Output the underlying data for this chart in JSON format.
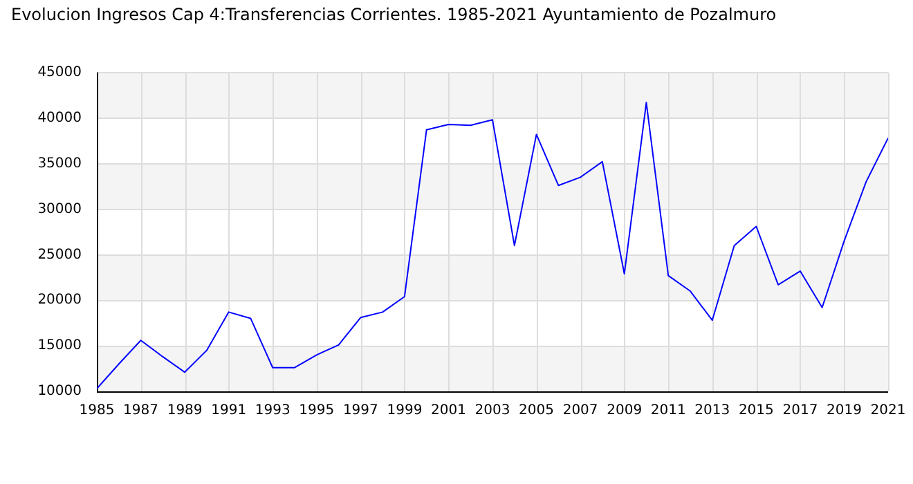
{
  "chart_data": {
    "type": "line",
    "title": "Evolucion Ingresos Cap 4:Transferencias Corrientes. 1985-2021 Ayuntamiento de Pozalmuro",
    "x": [
      1985,
      1986,
      1987,
      1988,
      1989,
      1990,
      1991,
      1992,
      1993,
      1994,
      1995,
      1996,
      1997,
      1998,
      1999,
      2000,
      2001,
      2002,
      2003,
      2004,
      2005,
      2006,
      2007,
      2008,
      2009,
      2010,
      2011,
      2012,
      2013,
      2014,
      2015,
      2016,
      2017,
      2018,
      2019,
      2020,
      2021
    ],
    "series": [
      {
        "color": "#0000ff",
        "values": [
          10300,
          13000,
          15600,
          13800,
          12100,
          14500,
          18700,
          18000,
          12600,
          12600,
          14000,
          15100,
          18100,
          18700,
          20400,
          38700,
          39300,
          39200,
          39800,
          26000,
          38200,
          32600,
          33500,
          35200,
          22900,
          41700,
          22700,
          21000,
          17800,
          26000,
          28100,
          21700,
          23200,
          19200,
          26500,
          33000,
          37800
        ]
      }
    ],
    "xlim": [
      1985,
      2021
    ],
    "xticks": [
      1985,
      1987,
      1989,
      1991,
      1993,
      1995,
      1997,
      1999,
      2001,
      2003,
      2005,
      2007,
      2009,
      2011,
      2013,
      2015,
      2017,
      2019,
      2021
    ],
    "ylim": [
      10000,
      45000
    ],
    "yticks": [
      10000,
      15000,
      20000,
      25000,
      30000,
      35000,
      40000,
      45000
    ],
    "grid": true,
    "marker": "none",
    "line_style": "solid",
    "legend": false
  }
}
